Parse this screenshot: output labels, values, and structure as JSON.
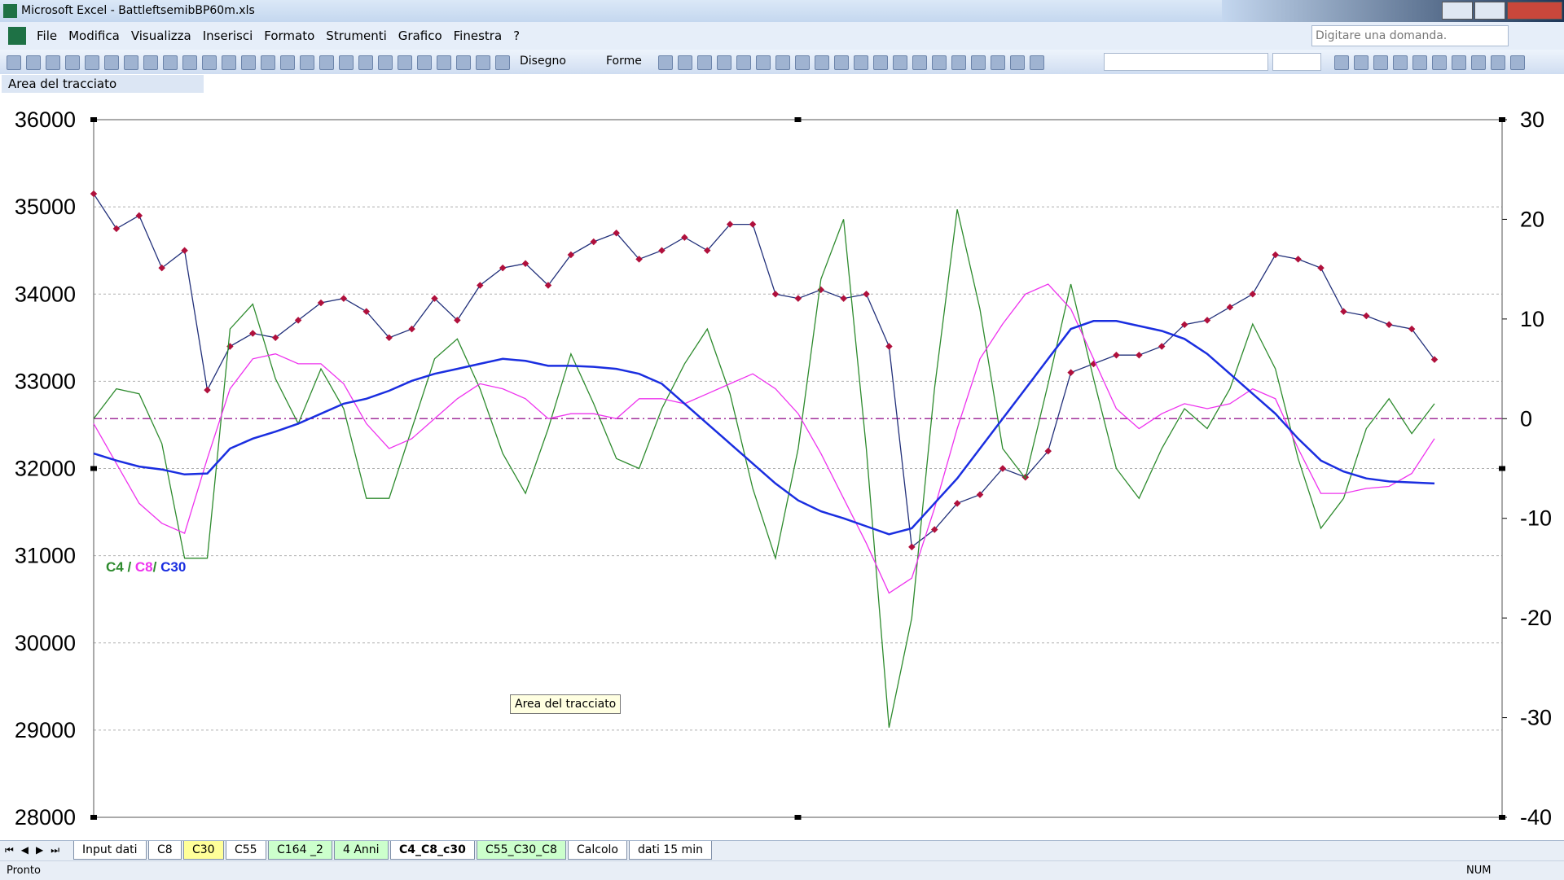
{
  "window": {
    "title": "Microsoft Excel - BattleftsemibBP60m.xls",
    "help_box": "Digitare una domanda."
  },
  "menu": [
    "File",
    "Modifica",
    "Visualizza",
    "Inserisci",
    "Formato",
    "Strumenti",
    "Grafico",
    "Finestra",
    "?"
  ],
  "toolbar": {
    "draw": "Disegno",
    "shapes": "Forme"
  },
  "name_box": "Area del tracciato",
  "tooltip": "Area del tracciato",
  "chart_data": {
    "type": "line",
    "annotation": {
      "separators": [
        " / ",
        "/ "
      ]
    },
    "ylim": [
      28000,
      36000
    ],
    "yticks": [
      28000,
      29000,
      30000,
      31000,
      32000,
      33000,
      34000,
      35000,
      36000
    ],
    "y2lim": [
      -40,
      30
    ],
    "y2ticks": [
      -40,
      -30,
      -20,
      -10,
      0,
      10,
      20,
      30
    ],
    "y2_reference": 0,
    "grid": true,
    "series": [
      {
        "color": "#b0103c",
        "line_color": "#22307a",
        "markers": true,
        "values": [
          35150,
          34750,
          34900,
          34300,
          34500,
          32900,
          33400,
          33550,
          33500,
          33700,
          33900,
          33950,
          33800,
          33500,
          33600,
          33950,
          33700,
          34100,
          34300,
          34350,
          34100,
          34450,
          34600,
          34700,
          34400,
          34500,
          34650,
          34500,
          34800,
          34800,
          34000,
          33950,
          34050,
          33950,
          34000,
          33400,
          31100,
          31300,
          31600,
          31700,
          32000,
          31900,
          32200,
          33100,
          33200,
          33300,
          33300,
          33400,
          33650,
          33700,
          33850,
          34000,
          34450,
          34400,
          34300,
          33800,
          33750,
          33650,
          33600,
          33250
        ]
      },
      {
        "name": "C4",
        "color": "#2e8b2e",
        "axis": "y2",
        "values": [
          0,
          3,
          2.5,
          -2.5,
          -14,
          -14,
          9,
          11.5,
          4,
          -0.5,
          5,
          1,
          -8,
          -8,
          -1,
          6,
          8,
          3,
          -3.5,
          -7.5,
          -1,
          6.5,
          1.5,
          -4,
          -5,
          1,
          5.5,
          9,
          2.5,
          -7,
          -14,
          -3,
          14,
          20,
          -3,
          -31,
          -20,
          3,
          21,
          11,
          -3,
          -6,
          3.5,
          13.5,
          4,
          -5,
          -8,
          -3,
          1,
          -1,
          3,
          9.5,
          5,
          -4,
          -11,
          -8,
          -1,
          2,
          -1.5,
          1.5
        ]
      },
      {
        "name": "C8",
        "color": "#ee33ee",
        "axis": "y2",
        "values": [
          -0.5,
          -4.5,
          -8.5,
          -10.5,
          -11.5,
          -4,
          3,
          6,
          6.5,
          5.5,
          5.5,
          3.5,
          -0.5,
          -3,
          -2,
          0,
          2,
          3.5,
          3,
          2,
          0,
          0.5,
          0.5,
          0,
          2,
          2,
          1.5,
          2.5,
          3.5,
          4.5,
          3,
          0.5,
          -3.5,
          -8,
          -12.5,
          -17.5,
          -16,
          -9,
          -1,
          6,
          9.5,
          12.5,
          13.5,
          11,
          6,
          1,
          -1,
          0.5,
          1.5,
          1,
          1.5,
          3,
          2,
          -3,
          -7.5,
          -7.5,
          -7,
          -6.8,
          -5.5,
          -2
        ]
      },
      {
        "name": "C30",
        "color": "#1a2ee0",
        "axis": "y2",
        "values": [
          -3.5,
          -4.2,
          -4.8,
          -5.1,
          -5.6,
          -5.5,
          -3,
          -2,
          -1.3,
          -0.5,
          0.5,
          1.5,
          2,
          2.8,
          3.8,
          4.5,
          5,
          5.5,
          6,
          5.8,
          5.3,
          5.3,
          5.2,
          5,
          4.5,
          3.5,
          1.5,
          -0.5,
          -2.5,
          -4.5,
          -6.5,
          -8.2,
          -9.3,
          -10,
          -10.8,
          -11.6,
          -11,
          -8.5,
          -6,
          -3,
          0,
          3,
          6,
          9,
          9.8,
          9.8,
          9.3,
          8.8,
          8,
          6.5,
          4.5,
          2.5,
          0.5,
          -2,
          -4.2,
          -5.3,
          -6,
          -6.3,
          -6.4,
          -6.5
        ]
      }
    ]
  },
  "sheet_tabs": [
    {
      "label": "Input dati",
      "color": "#ffffff"
    },
    {
      "label": "C8",
      "color": "#ffffff"
    },
    {
      "label": "C30",
      "color": "#ffff99"
    },
    {
      "label": "C55",
      "color": "#ffffff"
    },
    {
      "label": "C164 _2",
      "color": "#ccffcc"
    },
    {
      "label": "4 Anni",
      "color": "#ccffcc"
    },
    {
      "label": "C4_C8_c30",
      "color": "#ffffff",
      "active": true
    },
    {
      "label": "C55_C30_C8",
      "color": "#ccffcc"
    },
    {
      "label": "Calcolo",
      "color": "#ffffff"
    },
    {
      "label": "dati 15 min",
      "color": "#ffffff"
    }
  ],
  "status": {
    "left": "Pronto",
    "right": "NUM"
  }
}
